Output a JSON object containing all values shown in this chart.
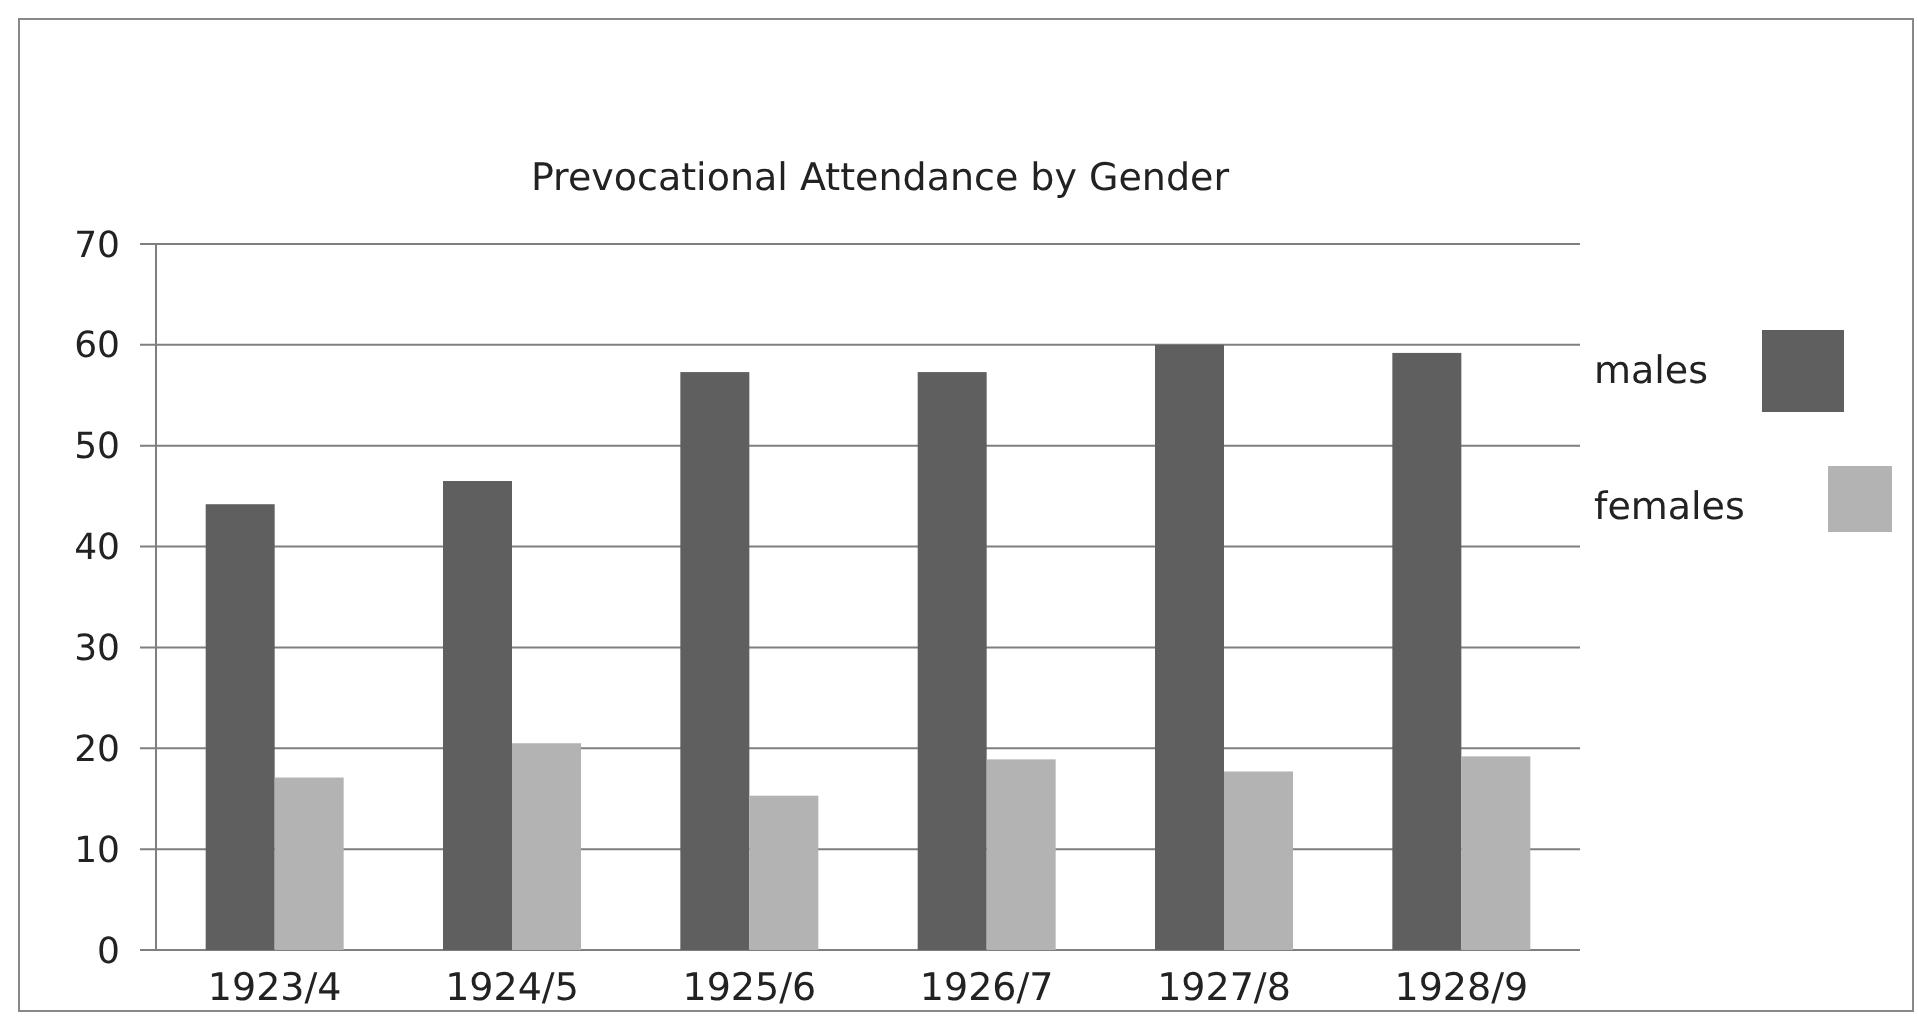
{
  "chart_data": {
    "type": "bar",
    "title": "Prevocational Attendance by Gender",
    "categories": [
      "1923/4",
      "1924/5",
      "1925/6",
      "1926/7",
      "1927/8",
      "1928/9"
    ],
    "series": [
      {
        "name": "males",
        "color": "#5f5f5f",
        "values": [
          44.2,
          46.5,
          57.3,
          57.3,
          60.0,
          59.2
        ]
      },
      {
        "name": "females",
        "color": "#b3b3b3",
        "values": [
          17.1,
          20.5,
          15.3,
          18.9,
          17.7,
          19.2
        ]
      }
    ],
    "ylim": [
      0,
      70
    ],
    "yticks": [
      0,
      10,
      20,
      30,
      40,
      50,
      60,
      70
    ],
    "grid": "y",
    "legend": "right"
  }
}
